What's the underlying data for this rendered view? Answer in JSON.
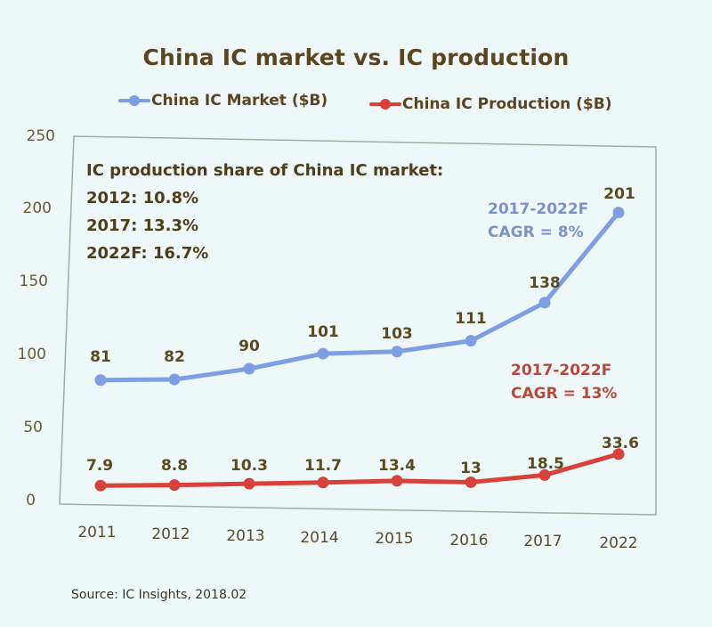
{
  "chart_data": {
    "type": "line",
    "title": "China IC market vs. IC production",
    "categories": [
      "2011",
      "2012",
      "2013",
      "2014",
      "2015",
      "2016",
      "2017",
      "2022"
    ],
    "series": [
      {
        "name": "China IC Market ($B)",
        "color": "#7d9ee2",
        "values": [
          81,
          82,
          90,
          101,
          103,
          111,
          138,
          201
        ]
      },
      {
        "name": "China IC Production ($B)",
        "color": "#d8403a",
        "values": [
          7.9,
          8.8,
          10.3,
          11.7,
          13.4,
          13,
          18.5,
          33.6
        ]
      }
    ],
    "xlabel": "",
    "ylabel": "",
    "ylim": [
      0,
      250
    ],
    "yticks": [
      "250",
      "200",
      "150",
      "100",
      "50",
      "0"
    ],
    "grid": false,
    "legend_position": "top",
    "annotations": {
      "share_title": "IC production share of China IC market:",
      "share_lines": [
        "2012: 10.8%",
        "2017: 13.3%",
        "2022F: 16.7%"
      ],
      "market_cagr": [
        "2017-2022F",
        "CAGR = 8%"
      ],
      "production_cagr": [
        "2017-2022F",
        "CAGR = 13%"
      ]
    },
    "source": "Source: IC Insights, 2018.02"
  },
  "colors": {
    "market": "#7d9ee2",
    "production": "#d8403a",
    "market_cagr_text": "#7b92c8",
    "production_cagr_text": "#b8483c",
    "text": "#5b4520"
  }
}
